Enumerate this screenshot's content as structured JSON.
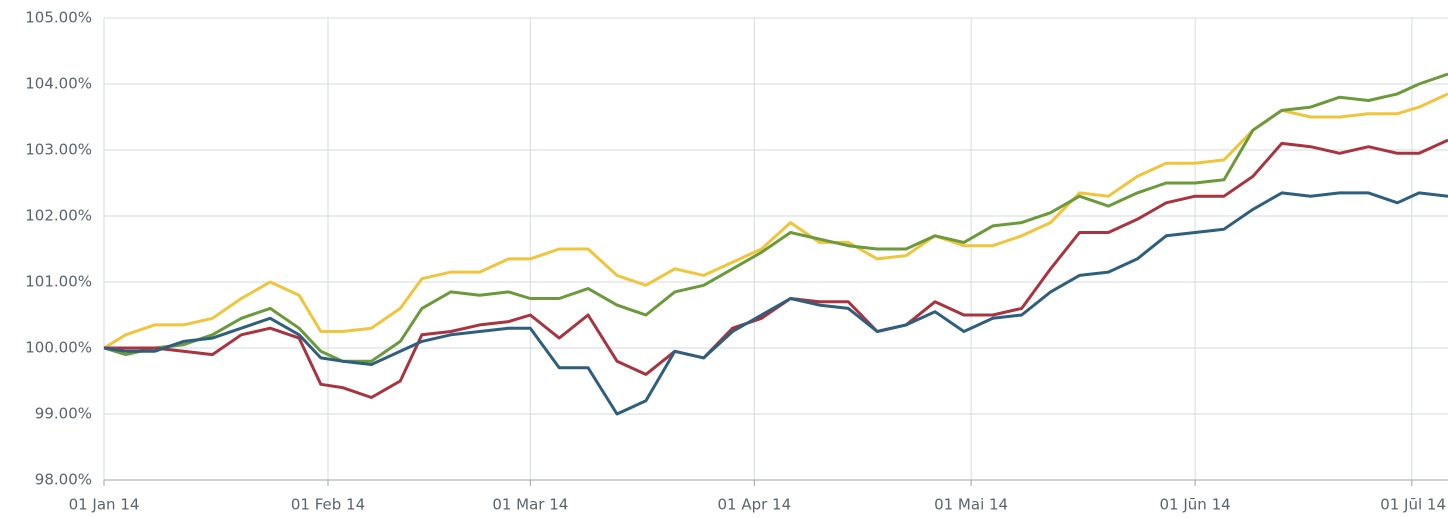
{
  "chart_data": {
    "type": "line",
    "x": [
      "2014-01-01",
      "2014-01-04",
      "2014-01-08",
      "2014-01-12",
      "2014-01-16",
      "2014-01-20",
      "2014-01-24",
      "2014-01-28",
      "2014-01-31",
      "2014-02-03",
      "2014-02-07",
      "2014-02-11",
      "2014-02-14",
      "2014-02-18",
      "2014-02-22",
      "2014-02-26",
      "2014-03-01",
      "2014-03-05",
      "2014-03-09",
      "2014-03-13",
      "2014-03-17",
      "2014-03-21",
      "2014-03-25",
      "2014-03-29",
      "2014-04-02",
      "2014-04-06",
      "2014-04-10",
      "2014-04-14",
      "2014-04-18",
      "2014-04-22",
      "2014-04-26",
      "2014-04-30",
      "2014-05-04",
      "2014-05-08",
      "2014-05-12",
      "2014-05-16",
      "2014-05-20",
      "2014-05-24",
      "2014-05-28",
      "2014-06-01",
      "2014-06-05",
      "2014-06-09",
      "2014-06-13",
      "2014-06-17",
      "2014-06-21",
      "2014-06-25",
      "2014-06-29",
      "2014-07-02",
      "2014-07-06"
    ],
    "series": [
      {
        "color": "#f0c43c",
        "values": [
          100,
          100.2,
          100.35,
          100.35,
          100.45,
          100.75,
          101.0,
          100.8,
          100.25,
          100.25,
          100.3,
          100.6,
          101.05,
          101.15,
          101.15,
          101.35,
          101.35,
          101.5,
          101.5,
          101.1,
          100.95,
          101.2,
          101.1,
          101.3,
          101.5,
          101.9,
          101.6,
          101.6,
          101.35,
          101.4,
          101.7,
          101.55,
          101.55,
          101.7,
          101.9,
          102.35,
          102.3,
          102.6,
          102.8,
          102.8,
          102.85,
          103.3,
          103.6,
          103.5,
          103.5,
          103.55,
          103.55,
          103.65,
          103.85
        ]
      },
      {
        "color": "#6a9a3a",
        "values": [
          100,
          99.9,
          100,
          100.05,
          100.2,
          100.45,
          100.6,
          100.3,
          99.95,
          99.8,
          99.8,
          100.1,
          100.6,
          100.85,
          100.8,
          100.85,
          100.75,
          100.75,
          100.9,
          100.65,
          100.5,
          100.85,
          100.95,
          101.2,
          101.45,
          101.75,
          101.65,
          101.55,
          101.5,
          101.5,
          101.7,
          101.6,
          101.85,
          101.9,
          102.05,
          102.3,
          102.15,
          102.35,
          102.5,
          102.5,
          102.55,
          103.3,
          103.6,
          103.65,
          103.8,
          103.75,
          103.85,
          104.0,
          104.15
        ]
      },
      {
        "color": "#a8343f",
        "values": [
          100,
          100,
          100,
          99.95,
          99.9,
          100.2,
          100.3,
          100.15,
          99.45,
          99.4,
          99.25,
          99.5,
          100.2,
          100.25,
          100.35,
          100.4,
          100.5,
          100.15,
          100.5,
          99.8,
          99.6,
          99.95,
          99.85,
          100.3,
          100.45,
          100.75,
          100.7,
          100.7,
          100.25,
          100.35,
          100.7,
          100.5,
          100.5,
          100.6,
          101.2,
          101.75,
          101.75,
          101.95,
          102.2,
          102.3,
          102.3,
          102.6,
          103.1,
          103.05,
          102.95,
          103.05,
          102.95,
          102.95,
          103.15
        ]
      },
      {
        "color": "#2e5f7f",
        "values": [
          100,
          99.95,
          99.95,
          100.1,
          100.15,
          100.3,
          100.45,
          100.2,
          99.85,
          99.8,
          99.75,
          99.95,
          100.1,
          100.2,
          100.25,
          100.3,
          100.3,
          99.7,
          99.7,
          99.0,
          99.2,
          99.95,
          99.85,
          100.25,
          100.5,
          100.75,
          100.65,
          100.6,
          100.25,
          100.35,
          100.55,
          100.25,
          100.45,
          100.5,
          100.85,
          101.1,
          101.15,
          101.35,
          101.7,
          101.75,
          101.8,
          102.1,
          102.35,
          102.3,
          102.35,
          102.35,
          102.2,
          102.35,
          102.3
        ]
      }
    ],
    "xlim": [
      "2014-01-01",
      "2014-07-06"
    ],
    "xticks": [
      {
        "value": "2014-01-01",
        "label": "01 Jan 14"
      },
      {
        "value": "2014-02-01",
        "label": "01 Feb 14"
      },
      {
        "value": "2014-03-01",
        "label": "01 Mar 14"
      },
      {
        "value": "2014-04-01",
        "label": "01 Apr 14"
      },
      {
        "value": "2014-05-01",
        "label": "01 Mai 14"
      },
      {
        "value": "2014-06-01",
        "label": "01 Jūn 14"
      },
      {
        "value": "2014-07-01",
        "label": "01 Jūl 14"
      }
    ],
    "ylim": [
      98,
      105
    ],
    "yticks": [
      {
        "value": 98,
        "label": "98.00%"
      },
      {
        "value": 99,
        "label": "99.00%"
      },
      {
        "value": 100,
        "label": "100.00%"
      },
      {
        "value": 101,
        "label": "101.00%"
      },
      {
        "value": 102,
        "label": "102.00%"
      },
      {
        "value": 103,
        "label": "103.00%"
      },
      {
        "value": 104,
        "label": "104.00%"
      },
      {
        "value": 105,
        "label": "105.00%"
      }
    ],
    "grid": true
  }
}
